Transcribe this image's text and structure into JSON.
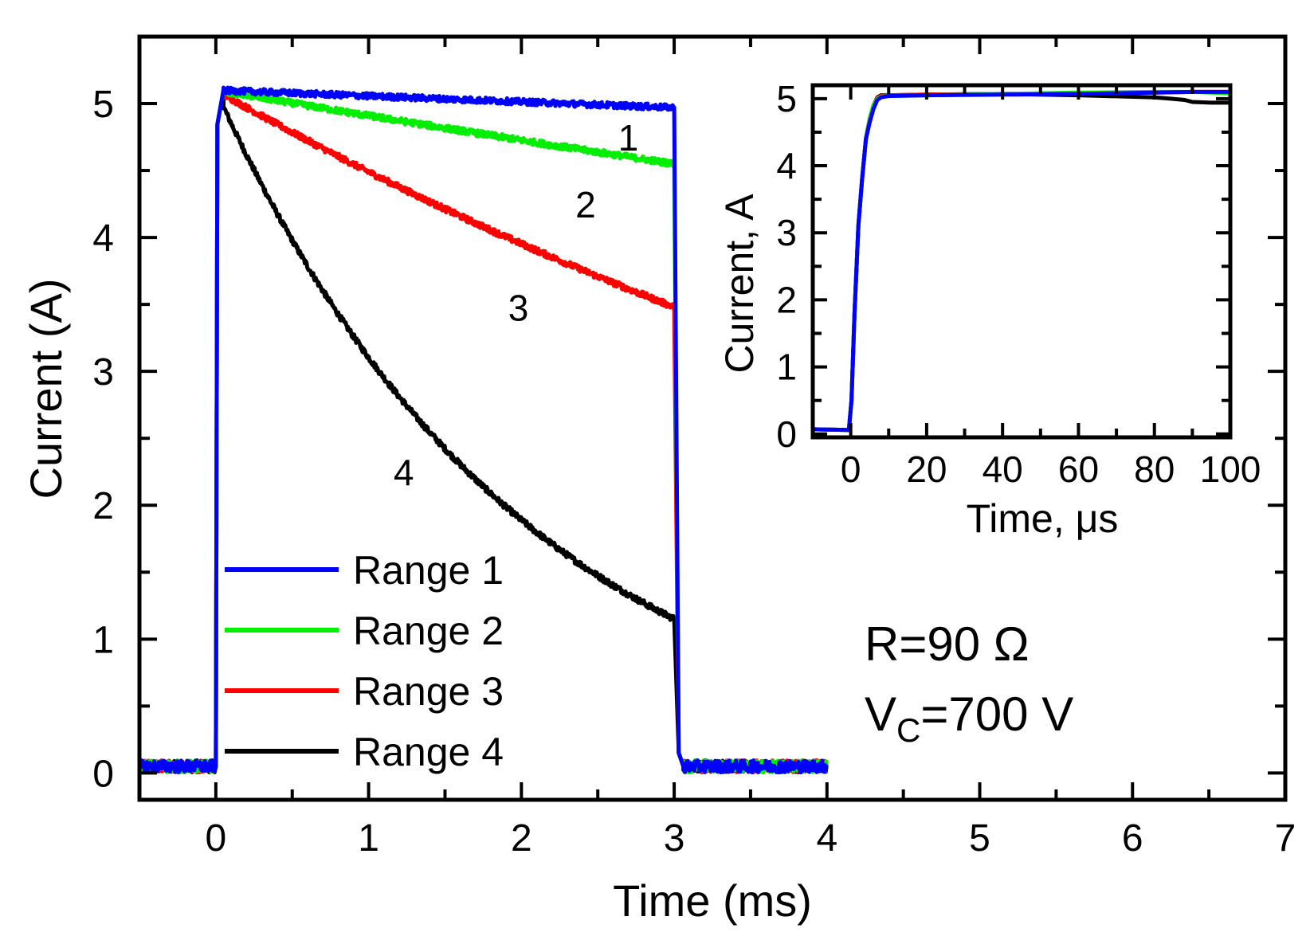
{
  "chart_data": {
    "type": "line",
    "title": "",
    "xlabel": "Time (ms)",
    "ylabel": "Current (A)",
    "xlim": [
      -0.5,
      7
    ],
    "ylim": [
      -0.2,
      5.5
    ],
    "xticks": [
      0,
      1,
      2,
      3,
      4,
      5,
      6,
      7
    ],
    "xtick_labels": [
      "0",
      "1",
      "2",
      "3",
      "4",
      "5",
      "6",
      "7"
    ],
    "yticks": [
      0,
      1,
      2,
      3,
      4,
      5
    ],
    "ytick_labels": [
      "0",
      "1",
      "2",
      "3",
      "4",
      "5"
    ],
    "legend": {
      "position": "bottom-left",
      "entries": [
        "Range 1",
        "Range 2",
        "Range 3",
        "Range 4"
      ]
    },
    "series": [
      {
        "name": "Range 1",
        "color": "#0000ff",
        "pulse_start": 0,
        "pulse_end": 3,
        "baseline": 0.05,
        "start_value": 5.1,
        "end_value": 4.97
      },
      {
        "name": "Range 2",
        "color": "#00ee00",
        "pulse_start": 0,
        "pulse_end": 3,
        "baseline": 0.05,
        "start_value": 5.1,
        "end_value": 4.55
      },
      {
        "name": "Range 3",
        "color": "#ff0000",
        "pulse_start": 0,
        "pulse_end": 3,
        "baseline": 0.05,
        "start_value": 5.1,
        "end_value": 3.48
      },
      {
        "name": "Range 4",
        "color": "#000000",
        "pulse_start": 0,
        "pulse_end": 3,
        "baseline": 0.05,
        "start_value": 5.1,
        "end_value": 1.15
      }
    ],
    "data_range_x": [
      -0.5,
      4
    ],
    "curve_labels": [
      {
        "text": "1",
        "x": 2.7,
        "y": 4.75
      },
      {
        "text": "2",
        "x": 2.42,
        "y": 4.25
      },
      {
        "text": "3",
        "x": 1.98,
        "y": 3.48
      },
      {
        "text": "4",
        "x": 1.23,
        "y": 2.25
      }
    ],
    "annotations": {
      "resistance": "R=90 Ω",
      "voltage_main": "V",
      "voltage_sub": "C",
      "voltage_rest": "=700 V"
    },
    "inset": {
      "type": "line",
      "xlabel": "Time, μs",
      "ylabel": "Current, A",
      "xlim": [
        -10,
        100
      ],
      "ylim": [
        -0.05,
        5.2
      ],
      "xticks": [
        0,
        20,
        40,
        60,
        80,
        100
      ],
      "xtick_labels": [
        "0",
        "20",
        "40",
        "60",
        "80",
        "100"
      ],
      "yticks": [
        0,
        1,
        2,
        3,
        4,
        5
      ],
      "ytick_labels": [
        "0",
        "1",
        "2",
        "3",
        "4",
        "5"
      ],
      "series": [
        {
          "name": "Range 4",
          "color": "#000000",
          "x": [
            -10,
            -0.5,
            0.2,
            1,
            2,
            3,
            4,
            5,
            6,
            7,
            8,
            10,
            20,
            40,
            60,
            80,
            84,
            88,
            90,
            95,
            100
          ],
          "y": [
            0.07,
            0.06,
            0.5,
            1.8,
            3.1,
            3.8,
            4.4,
            4.7,
            4.9,
            5.02,
            5.05,
            5.05,
            5.06,
            5.07,
            5.05,
            5.02,
            5.0,
            4.98,
            4.95,
            4.94,
            4.94
          ]
        },
        {
          "name": "Range 3",
          "color": "#ff0000",
          "x": [
            -10,
            -0.5,
            0.2,
            1,
            2,
            3,
            4,
            5,
            6,
            7,
            8,
            10,
            20,
            40,
            60,
            80,
            90,
            100
          ],
          "y": [
            0.07,
            0.06,
            0.5,
            1.8,
            3.1,
            3.8,
            4.4,
            4.7,
            4.9,
            5.01,
            5.04,
            5.05,
            5.06,
            5.07,
            5.08,
            5.09,
            5.1,
            5.1
          ]
        },
        {
          "name": "Range 2",
          "color": "#00ee00",
          "x": [
            -10,
            -0.5,
            0.2,
            1,
            2,
            3,
            4,
            5,
            6,
            7,
            8,
            10,
            20,
            40,
            60,
            80,
            90,
            100
          ],
          "y": [
            0.07,
            0.06,
            0.5,
            1.8,
            3.1,
            3.8,
            4.4,
            4.7,
            4.9,
            5.0,
            5.03,
            5.04,
            5.05,
            5.07,
            5.09,
            5.1,
            5.1,
            5.08
          ]
        },
        {
          "name": "Range 1",
          "color": "#0000ff",
          "x": [
            -10,
            -0.5,
            0.2,
            1,
            2,
            3,
            4,
            5,
            6,
            7,
            8,
            10,
            20,
            40,
            60,
            80,
            90,
            100
          ],
          "y": [
            0.07,
            0.06,
            0.5,
            1.8,
            3.1,
            3.8,
            4.4,
            4.65,
            4.85,
            4.98,
            5.02,
            5.04,
            5.05,
            5.06,
            5.07,
            5.09,
            5.1,
            5.1
          ]
        }
      ]
    }
  }
}
